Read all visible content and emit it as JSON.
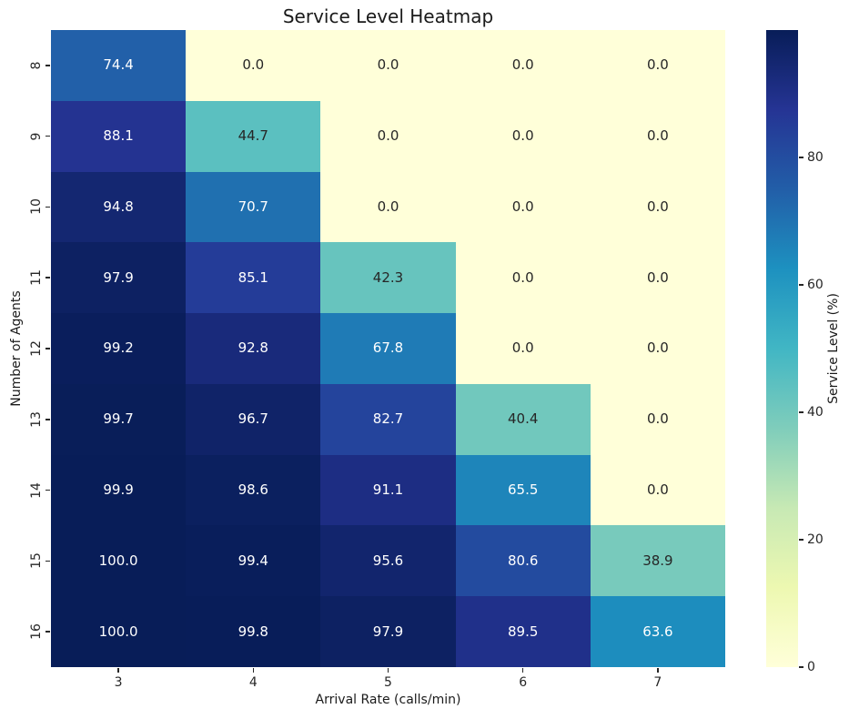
{
  "chart_data": {
    "type": "heatmap",
    "title": "Service Level Heatmap",
    "xlabel": "Arrival Rate (calls/min)",
    "ylabel": "Number of Agents",
    "colorbar_label": "Service Level (%)",
    "x_categories": [
      "3",
      "4",
      "5",
      "6",
      "7"
    ],
    "y_categories": [
      "8",
      "9",
      "10",
      "11",
      "12",
      "13",
      "14",
      "15",
      "16"
    ],
    "values": [
      [
        74.4,
        0.0,
        0.0,
        0.0,
        0.0
      ],
      [
        88.1,
        44.7,
        0.0,
        0.0,
        0.0
      ],
      [
        94.8,
        70.7,
        0.0,
        0.0,
        0.0
      ],
      [
        97.9,
        85.1,
        42.3,
        0.0,
        0.0
      ],
      [
        99.2,
        92.8,
        67.8,
        0.0,
        0.0
      ],
      [
        99.7,
        96.7,
        82.7,
        40.4,
        0.0
      ],
      [
        99.9,
        98.6,
        91.1,
        65.5,
        0.0
      ],
      [
        100.0,
        99.4,
        95.6,
        80.6,
        38.9
      ],
      [
        100.0,
        99.8,
        97.9,
        89.5,
        63.6
      ]
    ],
    "annot_decimals": 1,
    "vmin": 0,
    "vmax": 100,
    "colorbar_ticks": [
      0,
      20,
      40,
      60,
      80
    ],
    "legend_position": "right",
    "grid": false,
    "colormap": "YlGnBu",
    "colormap_stops": [
      "#ffffd9",
      "#edf8b1",
      "#c7e9b4",
      "#7fcdbb",
      "#41b6c4",
      "#1d91c0",
      "#225ea8",
      "#253494",
      "#081d58"
    ],
    "annot_dark_text_color": "#262626",
    "annot_light_text_color": "#ffffff"
  }
}
